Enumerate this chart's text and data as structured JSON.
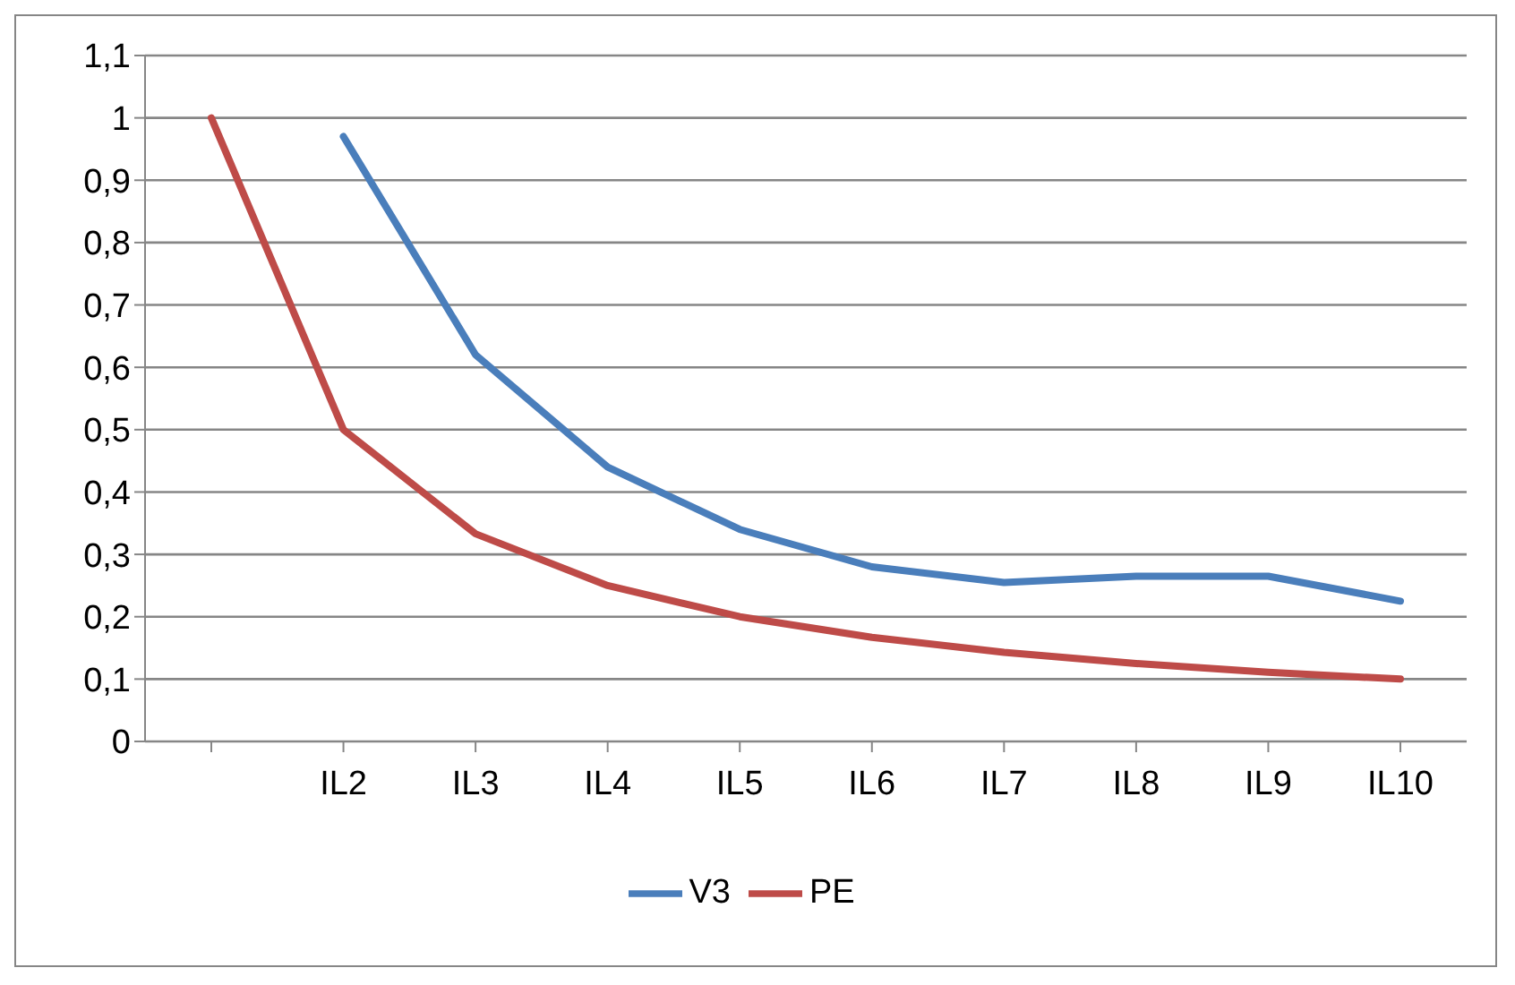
{
  "chart_data": {
    "type": "line",
    "categories": [
      null,
      "IL2",
      "IL3",
      "IL4",
      "IL5",
      "IL6",
      "IL7",
      "IL8",
      "IL9",
      "IL10"
    ],
    "series": [
      {
        "name": "V3",
        "color": "#4a7ebb",
        "values": [
          null,
          0.97,
          0.62,
          0.44,
          0.34,
          0.28,
          0.255,
          0.265,
          0.265,
          0.225
        ]
      },
      {
        "name": "PE",
        "color": "#be4b48",
        "values": [
          1,
          0.5,
          0.333,
          0.25,
          0.2,
          0.167,
          0.143,
          0.125,
          0.111,
          0.1
        ]
      }
    ],
    "ylim": [
      0,
      1.1
    ],
    "yticks": [
      {
        "value": 0,
        "label": "0"
      },
      {
        "value": 0.1,
        "label": "0,1"
      },
      {
        "value": 0.2,
        "label": "0,2"
      },
      {
        "value": 0.3,
        "label": "0,3"
      },
      {
        "value": 0.4,
        "label": "0,4"
      },
      {
        "value": 0.5,
        "label": "0,5"
      },
      {
        "value": 0.6,
        "label": "0,6"
      },
      {
        "value": 0.7,
        "label": "0,7"
      },
      {
        "value": 0.8,
        "label": "0,8"
      },
      {
        "value": 0.9,
        "label": "0,9"
      },
      {
        "value": 1,
        "label": "1"
      },
      {
        "value": 1.1,
        "label": "1,1"
      }
    ],
    "grid": "y",
    "legend": "bottom",
    "marker": "none",
    "line_style": "solid"
  }
}
